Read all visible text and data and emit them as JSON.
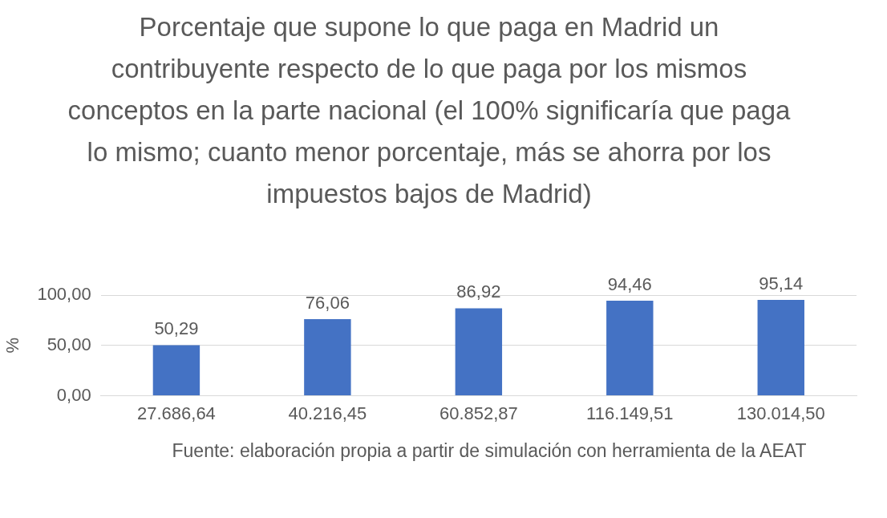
{
  "chart_data": {
    "type": "bar",
    "title": "Porcentaje que supone lo que paga en Madrid un contribuyente respecto de lo que paga por los mismos conceptos en la parte nacional (el 100% significaría que paga lo mismo; cuanto menor porcentaje, más se ahorra por los impuestos bajos de Madrid)",
    "ylabel": "%",
    "xlabel": "Fuente: elaboración propia a partir de simulación con herramienta de la AEAT",
    "categories": [
      "27.686,64",
      "40.216,45",
      "60.852,87",
      "116.149,51",
      "130.014,50"
    ],
    "values": [
      50.29,
      76.06,
      86.92,
      94.46,
      95.14
    ],
    "value_labels": [
      "50,29",
      "76,06",
      "86,92",
      "94,46",
      "95,14"
    ],
    "color": "#4472c4",
    "ylim": [
      0,
      100
    ],
    "yticks": [
      {
        "value": 0,
        "label": "0,00"
      },
      {
        "value": 50,
        "label": "50,00"
      },
      {
        "value": 100,
        "label": "100,00"
      }
    ],
    "grid": "y",
    "legend": false
  }
}
